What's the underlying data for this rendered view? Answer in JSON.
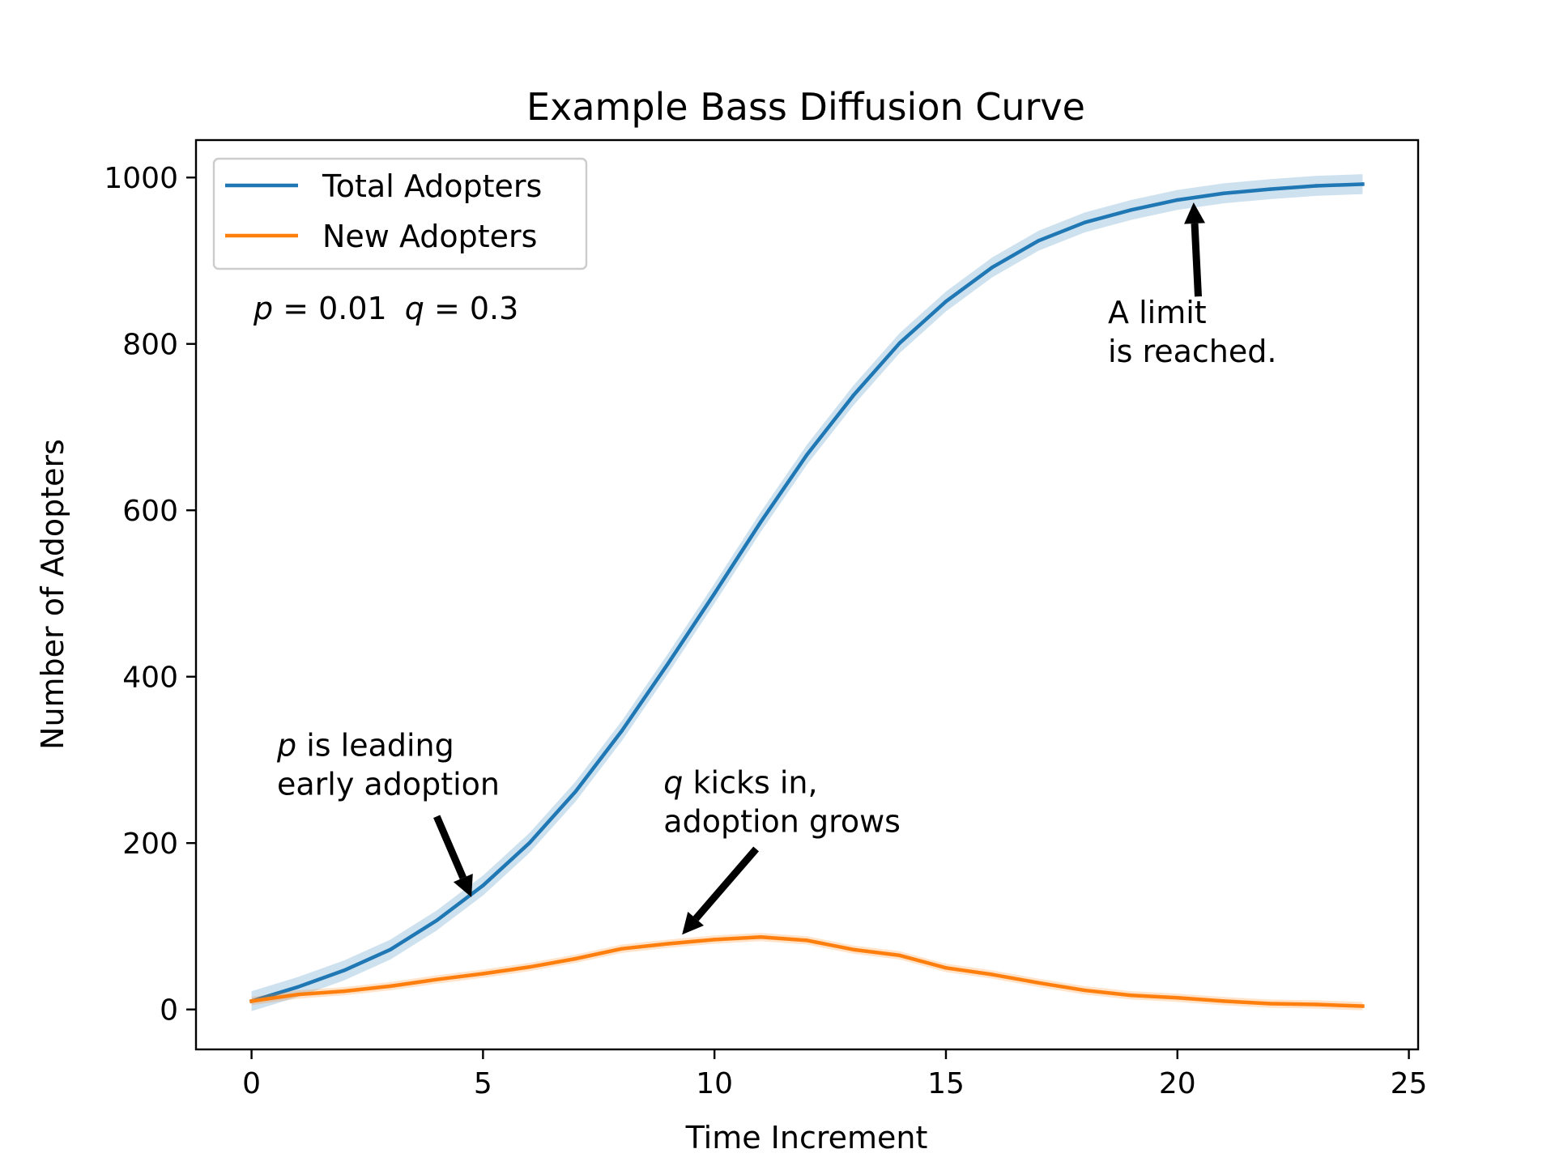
{
  "chart_data": {
    "type": "line",
    "title": "Example Bass Diffusion Curve",
    "xlabel": "Time Increment",
    "ylabel": "Number of Adopters",
    "xlim": [
      -1.2,
      25.2
    ],
    "ylim": [
      -48,
      1045
    ],
    "xticks": [
      0,
      5,
      10,
      15,
      20,
      25
    ],
    "yticks": [
      0,
      200,
      400,
      600,
      800,
      1000
    ],
    "grid": false,
    "legend_position": "top-left",
    "x": [
      0,
      1,
      2,
      3,
      4,
      5,
      6,
      7,
      8,
      9,
      10,
      11,
      12,
      13,
      14,
      15,
      16,
      17,
      18,
      19,
      20,
      21,
      22,
      23,
      24
    ],
    "series": [
      {
        "name": "Total Adopters",
        "color": "#1f77b4",
        "values": [
          10,
          27,
          47,
          72,
          107,
          149,
          200,
          262,
          335,
          416,
          500,
          586,
          667,
          738,
          801,
          851,
          892,
          924,
          946,
          961,
          973,
          981,
          986,
          990,
          992
        ],
        "band": 12
      },
      {
        "name": "New Adopters",
        "color": "#ff7f0e",
        "values": [
          10,
          18,
          22,
          28,
          36,
          43,
          51,
          61,
          73,
          79,
          84,
          87,
          83,
          72,
          65,
          50,
          42,
          32,
          23,
          17,
          14,
          10,
          7,
          6,
          4
        ],
        "band": 5
      }
    ],
    "params_text": {
      "p_symbol": "p",
      "p_value": " = 0.01",
      "q_symbol": "q",
      "q_value": " = 0.3"
    },
    "annotations": [
      {
        "id": "p-leading",
        "line1_italic": "p",
        "line1_rest": " is leading",
        "line2": "early adoption",
        "text_x": 0.55,
        "text_y": 305,
        "tail": [
          4.0,
          232
        ],
        "head": [
          4.75,
          135
        ]
      },
      {
        "id": "q-kicks",
        "line1_italic": "q",
        "line1_rest": " kicks in,",
        "line2": "adoption grows",
        "text_x": 8.9,
        "text_y": 260,
        "tail": [
          10.9,
          193
        ],
        "head": [
          9.3,
          90
        ]
      },
      {
        "id": "limit",
        "line1_italic": "",
        "line1_rest": "A limit",
        "line2": "is reached.",
        "text_x": 18.5,
        "text_y": 825,
        "tail": [
          20.45,
          857
        ],
        "head": [
          20.35,
          970
        ]
      }
    ]
  }
}
